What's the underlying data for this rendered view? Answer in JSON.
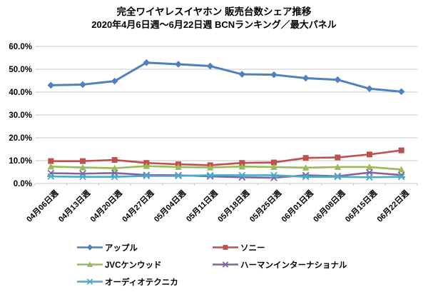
{
  "title": "完全ワイヤレスイヤホン 販売台数シェア推移",
  "subtitle": "2020年4月6日週～6月22日週 BCNランキング／最大パネル",
  "chart_data": {
    "type": "line",
    "title": "完全ワイヤレスイヤホン 販売台数シェア推移",
    "subtitle": "2020年4月6日週～6月22日週 BCNランキング／最大パネル",
    "categories": [
      "04月06日週",
      "04月13日週",
      "04月20日週",
      "04月27日週",
      "05月04日週",
      "05月11日週",
      "05月18日週",
      "05月25日週",
      "06月01日週",
      "06月08日週",
      "06月15日週",
      "06月22日週"
    ],
    "series": [
      {
        "name": "アップル",
        "color": "#4F81BD",
        "marker": "diamond",
        "values": [
          43.0,
          43.3,
          44.8,
          52.9,
          52.2,
          51.4,
          47.8,
          47.6,
          46.1,
          45.4,
          41.5,
          40.2
        ]
      },
      {
        "name": "ソニー",
        "color": "#C0504D",
        "marker": "square",
        "values": [
          9.8,
          9.8,
          10.3,
          9.0,
          8.4,
          8.0,
          9.0,
          9.2,
          11.2,
          11.4,
          12.7,
          14.5
        ]
      },
      {
        "name": "JVCケンウッド",
        "color": "#9BBB59",
        "marker": "triangle",
        "values": [
          7.4,
          7.0,
          6.7,
          7.6,
          7.2,
          7.0,
          7.4,
          7.2,
          6.9,
          7.2,
          7.2,
          6.1
        ]
      },
      {
        "name": "ハーマンインターナショナル",
        "color": "#8064A2",
        "marker": "x",
        "values": [
          4.5,
          4.3,
          4.6,
          3.7,
          3.6,
          3.1,
          2.7,
          2.5,
          3.6,
          3.2,
          4.8,
          3.7
        ]
      },
      {
        "name": "オーディオテクニカ",
        "color": "#4BACC6",
        "marker": "asterisk",
        "values": [
          3.1,
          2.9,
          2.9,
          3.3,
          3.3,
          3.6,
          3.6,
          3.6,
          2.9,
          2.9,
          2.7,
          2.9
        ]
      }
    ],
    "xlabel": "",
    "ylabel": "",
    "ylim": [
      0,
      60
    ],
    "y_ticks": [
      "60.0%",
      "50.0%",
      "40.0%",
      "30.0%",
      "20.0%",
      "10.0%",
      "0.0%"
    ],
    "grid": true,
    "gridline_color": "#C6C6C6",
    "legend_position": "bottom"
  }
}
